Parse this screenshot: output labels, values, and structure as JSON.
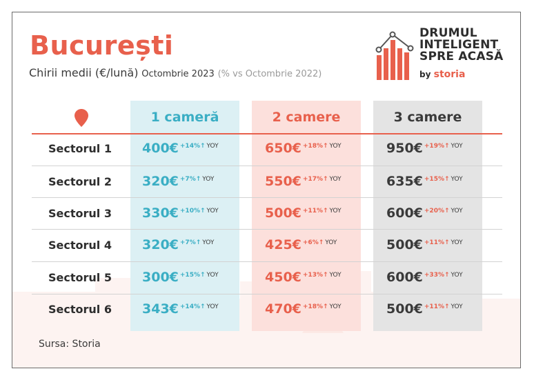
{
  "header": {
    "title": "București",
    "subtitle_main": "Chirii medii (€/lună)",
    "subtitle_date": "Octombrie 2023",
    "subtitle_compare": "(% vs Octombrie 2022)"
  },
  "logo": {
    "line1": "DRUMUL",
    "line2": "INTELIGENT",
    "line3": "SPRE ACASĂ",
    "by": "by",
    "brand": "storia",
    "icon": "bar-chart-house-icon"
  },
  "table": {
    "location_icon": "map-pin-icon",
    "columns": [
      "1 cameră",
      "2 camere",
      "3 camere"
    ],
    "yoy_label": "YOY",
    "rows": [
      {
        "label": "Sectorul 1",
        "cells": [
          {
            "price": "400€",
            "change": "+14%↑"
          },
          {
            "price": "650€",
            "change": "+18%↑"
          },
          {
            "price": "950€",
            "change": "+19%↑"
          }
        ]
      },
      {
        "label": "Sectorul 2",
        "cells": [
          {
            "price": "320€",
            "change": "+7%↑"
          },
          {
            "price": "550€",
            "change": "+17%↑"
          },
          {
            "price": "635€",
            "change": "+15%↑"
          }
        ]
      },
      {
        "label": "Sectorul 3",
        "cells": [
          {
            "price": "330€",
            "change": "+10%↑"
          },
          {
            "price": "500€",
            "change": "+11%↑"
          },
          {
            "price": "600€",
            "change": "+20%↑"
          }
        ]
      },
      {
        "label": "Sectorul 4",
        "cells": [
          {
            "price": "320€",
            "change": "+7%↑"
          },
          {
            "price": "425€",
            "change": "+6%↑"
          },
          {
            "price": "500€",
            "change": "+11%↑"
          }
        ]
      },
      {
        "label": "Sectorul 5",
        "cells": [
          {
            "price": "300€",
            "change": "+15%↑"
          },
          {
            "price": "450€",
            "change": "+13%↑"
          },
          {
            "price": "600€",
            "change": "+33%↑"
          }
        ]
      },
      {
        "label": "Sectorul 6",
        "cells": [
          {
            "price": "343€",
            "change": "+14%↑"
          },
          {
            "price": "470€",
            "change": "+18%↑"
          },
          {
            "price": "500€",
            "change": "+11%↑"
          }
        ]
      }
    ]
  },
  "footer": {
    "source": "Sursa: Storia"
  },
  "colors": {
    "accent": "#e8604c",
    "col1": "#3aaec4",
    "col1_bg": "#dcf0f4",
    "col2_bg": "#fce0dc",
    "col3_bg": "#e4e4e4",
    "text": "#2d2d2d"
  }
}
